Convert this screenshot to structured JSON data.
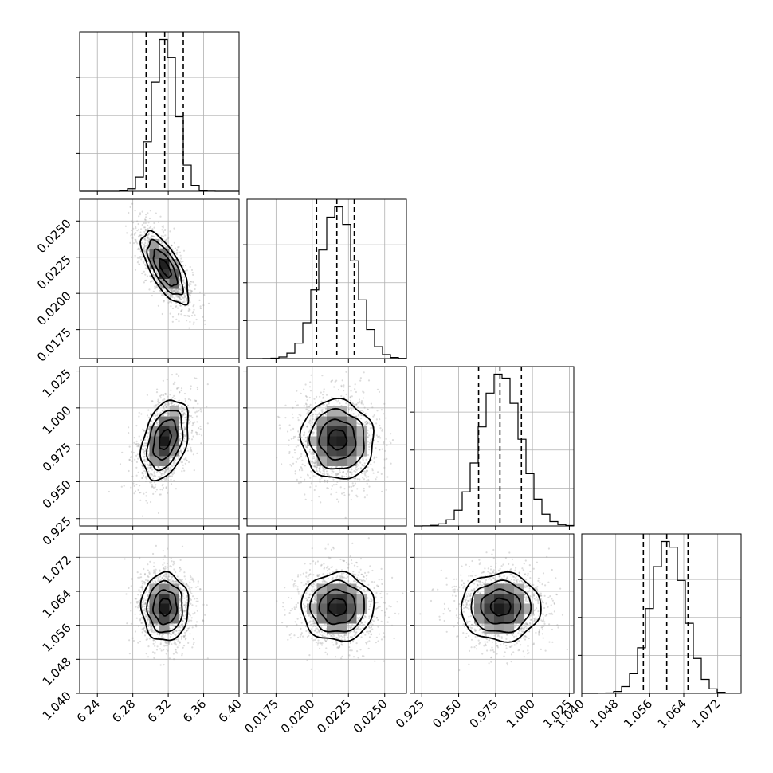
{
  "chart_data": {
    "type": "corner",
    "title": "",
    "parameters": [
      {
        "mean": 6.3165,
        "sd": 0.0133,
        "quantiles": [
          6.295,
          6.316,
          6.337
        ],
        "range": [
          6.22,
          6.4
        ],
        "ticks": [
          6.24,
          6.28,
          6.32,
          6.36,
          6.4
        ],
        "labels": [
          "6.24",
          "6.28",
          "6.32",
          "6.36",
          "6.40"
        ]
      },
      {
        "mean": 0.02175,
        "sd": 0.00125,
        "quantiles": [
          0.0203,
          0.0217,
          0.0229
        ],
        "range": [
          0.0155,
          0.0265
        ],
        "ticks": [
          0.0175,
          0.02,
          0.0225,
          0.025
        ],
        "labels": [
          "0.0175",
          "0.0200",
          "0.0225",
          "0.0250"
        ]
      },
      {
        "mean": 0.9785,
        "sd": 0.0135,
        "quantiles": [
          0.9635,
          0.978,
          0.9925
        ],
        "range": [
          0.92,
          1.028
        ],
        "ticks": [
          0.925,
          0.95,
          0.975,
          1.0,
          1.025
        ],
        "labels": [
          "0.925",
          "0.950",
          "0.975",
          "1.000",
          "1.025"
        ]
      },
      {
        "mean": 1.0603,
        "sd": 0.004,
        "quantiles": [
          1.0545,
          1.06,
          1.065
        ],
        "range": [
          1.04,
          1.0775
        ],
        "ticks": [
          1.04,
          1.048,
          1.056,
          1.064,
          1.072
        ],
        "labels": [
          "1.040",
          "1.048",
          "1.056",
          "1.064",
          "1.072"
        ]
      }
    ],
    "correlations": {
      "1-0": -0.7,
      "2-0": 0.35,
      "2-1": -0.05,
      "3-0": 0.0,
      "3-1": 0.0,
      "3-2": 0.0
    },
    "histogram_bins": 20,
    "contour_levels": [
      0.5,
      1.0,
      1.5,
      2.0
    ],
    "quantile_lines": "dashed",
    "grid": true
  }
}
